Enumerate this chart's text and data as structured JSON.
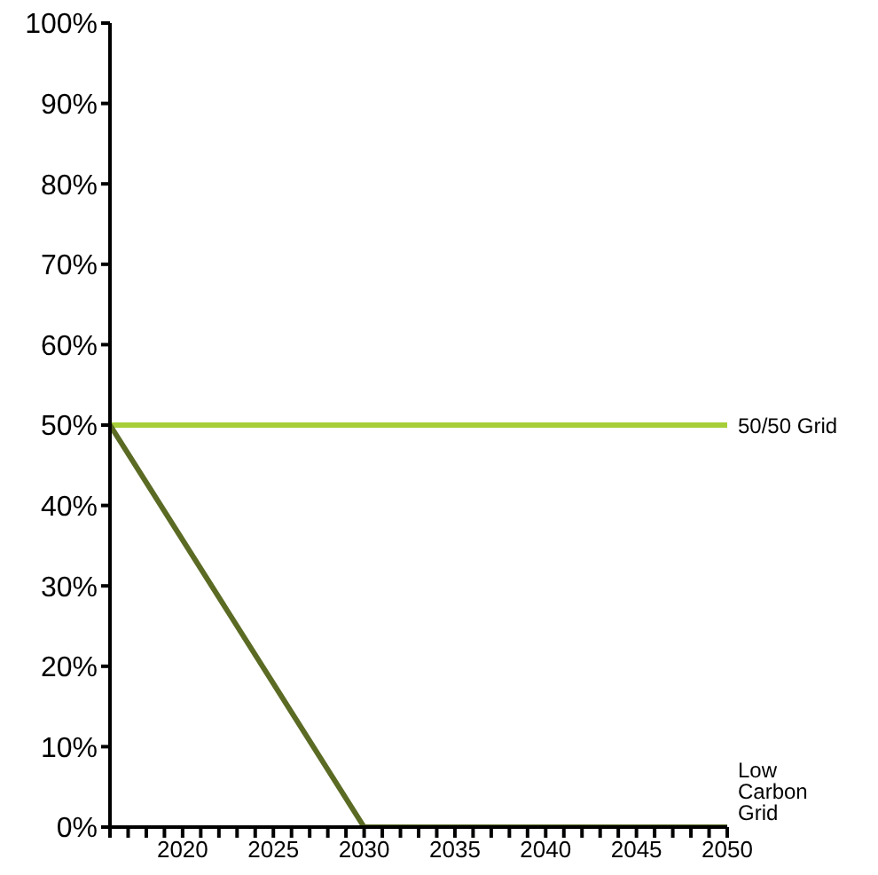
{
  "chart_data": {
    "type": "line",
    "xlim": [
      2016,
      2050
    ],
    "ylim": [
      0,
      100
    ],
    "xticks": [
      {
        "value": 2016,
        "label": null
      },
      {
        "value": 2017,
        "label": null
      },
      {
        "value": 2018,
        "label": null
      },
      {
        "value": 2019,
        "label": null
      },
      2020,
      {
        "value": 2021,
        "label": null
      },
      {
        "value": 2022,
        "label": null
      },
      {
        "value": 2023,
        "label": null
      },
      {
        "value": 2024,
        "label": null
      },
      2025,
      {
        "value": 2026,
        "label": null
      },
      {
        "value": 2027,
        "label": null
      },
      {
        "value": 2028,
        "label": null
      },
      {
        "value": 2029,
        "label": null
      },
      2030,
      {
        "value": 2031,
        "label": null
      },
      {
        "value": 2032,
        "label": null
      },
      {
        "value": 2033,
        "label": null
      },
      {
        "value": 2034,
        "label": null
      },
      2035,
      {
        "value": 2036,
        "label": null
      },
      {
        "value": 2037,
        "label": null
      },
      {
        "value": 2038,
        "label": null
      },
      {
        "value": 2039,
        "label": null
      },
      2040,
      {
        "value": 2041,
        "label": null
      },
      {
        "value": 2042,
        "label": null
      },
      {
        "value": 2043,
        "label": null
      },
      {
        "value": 2044,
        "label": null
      },
      2045,
      {
        "value": 2046,
        "label": null
      },
      {
        "value": 2047,
        "label": null
      },
      {
        "value": 2048,
        "label": null
      },
      {
        "value": 2049,
        "label": null
      },
      2050
    ],
    "yticks": [
      {
        "value": 0,
        "label": "0%"
      },
      {
        "value": 10,
        "label": "10%"
      },
      {
        "value": 20,
        "label": "20%"
      },
      {
        "value": 30,
        "label": "30%"
      },
      {
        "value": 40,
        "label": "40%"
      },
      {
        "value": 50,
        "label": "50%"
      },
      {
        "value": 60,
        "label": "60%"
      },
      {
        "value": 70,
        "label": "70%"
      },
      {
        "value": 80,
        "label": "80%"
      },
      {
        "value": 90,
        "label": "90%"
      },
      {
        "value": 100,
        "label": "100%"
      }
    ],
    "grid": false,
    "legend": false,
    "marker": "none",
    "line_style": "solid",
    "series": [
      {
        "name": "50/50 Grid",
        "color": "#a6ce39",
        "x": [
          2016,
          2050
        ],
        "values": [
          50,
          50
        ]
      },
      {
        "name": "Low Carbon Grid",
        "color": "#5b6b24",
        "x": [
          2016,
          2030,
          2050
        ],
        "values": [
          50,
          0,
          0
        ]
      }
    ]
  }
}
